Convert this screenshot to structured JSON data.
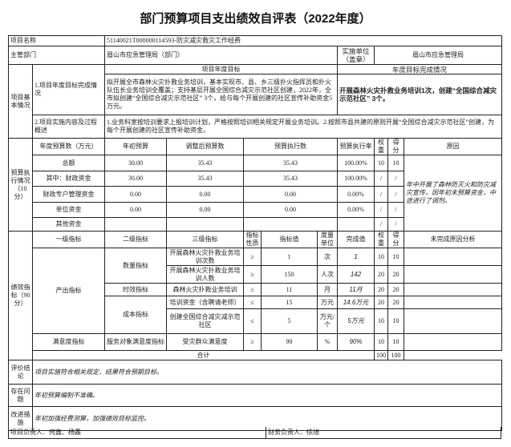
{
  "title": "部门预算项目支出绩效自评表（2022年度）",
  "project_name_label": "项目名称",
  "project_name": "51140021T000000114593-防灾减灾救灾工作经费",
  "dept_label": "主管部门",
  "dept": "眉山市应急管理局（部门）",
  "impl_unit_label": "实施单位（盖章）",
  "impl_unit": "眉山市应急管理局",
  "basic": {
    "label": "项目基本情况",
    "target_header": "项目年度目标",
    "completion_header": "年度目标完成情况",
    "row1_label": "1.项目年度目标完成情况",
    "row1_target": "拟开展全市森林火灾扑救业务培训，基本实现市、县、乡三级扑火指挥员和扑火队伍长业务培训全覆盖；支持基层开展全国综合减灾示范社区创建，2022年，全市拟创建“全国综合减灾示范社区” 3个，给与每个开展创建的社区宣传补助资金5万元。",
    "row1_completion": "开展森林火灾扑救业务培训1次，创建“全国综合减灾示范社区” 3个。",
    "row2_label": "2.项目实施内容及过程概述",
    "row2_text": "1.业务科室按培训要求上报培训计划，严格按照培训相关规定开展业务培训。2.按照市县共建的原则开展“全国综合减灾示范社区”创建，为每个开展创建的社区宣传补助资金。"
  },
  "budget": {
    "label": "预算执行情况（10分）",
    "headers": [
      "年度预算数（万元）",
      "年初预算",
      "调整后预算数",
      "预算执行数",
      "预算执行率",
      "权重",
      "得分",
      "原因"
    ],
    "rows": [
      {
        "name": "总额",
        "initial": "30.00",
        "adjusted": "35.43",
        "executed": "35.43",
        "rate": "100.00%",
        "weight": "10",
        "score": "10"
      },
      {
        "name": "其中：财政资金",
        "initial": "30.00",
        "adjusted": "35.43",
        "executed": "35.43",
        "rate": "100.00%",
        "weight": "/",
        "score": "/"
      },
      {
        "name": "财政专户管理资金",
        "initial": "0.00",
        "adjusted": "0.00",
        "executed": "0.00",
        "rate": "0.00%",
        "weight": "/",
        "score": "/"
      },
      {
        "name": "单位资金",
        "initial": "0.00",
        "adjusted": "0.00",
        "executed": "0.00",
        "rate": "0.00%",
        "weight": "/",
        "score": "/"
      },
      {
        "name": "其他资金",
        "initial": "",
        "adjusted": "",
        "executed": "",
        "rate": "",
        "weight": "/",
        "score": "/"
      }
    ],
    "reason": "年中开展了森林防灭火和防灾减灾宣传，因年初未预算资金，中途进行了调剂。"
  },
  "perf": {
    "label": "绩效指标（90分）",
    "headers": [
      "一级指标",
      "二级指标",
      "三级指标",
      "指标性质",
      "指标值",
      "度量单位",
      "完成值",
      "权重",
      "得分",
      "未完成原因分析"
    ],
    "level1": [
      "产出指标",
      "满意度指标"
    ],
    "level2": [
      "数量指标",
      "时效指标",
      "成本指标",
      "服务对象满意度指标"
    ],
    "rows": [
      {
        "name": "开展森林火灾扑救业务培训次数",
        "nature": "≥",
        "value": "1",
        "unit": "次",
        "done": "1",
        "weight": "10",
        "score": "10"
      },
      {
        "name": "开展森林火灾扑救业务培训人数",
        "nature": "≥",
        "value": "150",
        "unit": "人次",
        "done": "142",
        "weight": "20",
        "score": "20"
      },
      {
        "name": "森林火灾扑救业务培训",
        "nature": "≤",
        "value": "11",
        "unit": "月",
        "done": "11月",
        "weight": "20",
        "score": "20"
      },
      {
        "name": "培训资金（含聘请老师）",
        "nature": "≤",
        "value": "15",
        "unit": "万元",
        "done": "14.6万元",
        "weight": "20",
        "score": "20"
      },
      {
        "name": "创建全国综合减灾减示范社区",
        "nature": "≤",
        "value": "5",
        "unit": "万元/个",
        "done": "5万元",
        "weight": "10",
        "score": "10"
      },
      {
        "name": "受灾群众满意度",
        "nature": "≥",
        "value": "90",
        "unit": "%",
        "done": "90%",
        "weight": "10",
        "score": "10"
      }
    ],
    "total_label": "合计",
    "total_weight": "100",
    "total_score": "100"
  },
  "conclusion_label": "评价结论",
  "conclusion": "项目实施符合相关规定，结果符合预期目标。",
  "problem_label": "存在问题",
  "problem": "年初预算编制不准确。",
  "improve_label": "改进措施",
  "improve": "年初加强经费测算，加强绩效目标监控。",
  "footer": {
    "project_lead": "项目负责人：何鑫、杨磊",
    "finance_lead": "财务负责人：徐旭"
  }
}
